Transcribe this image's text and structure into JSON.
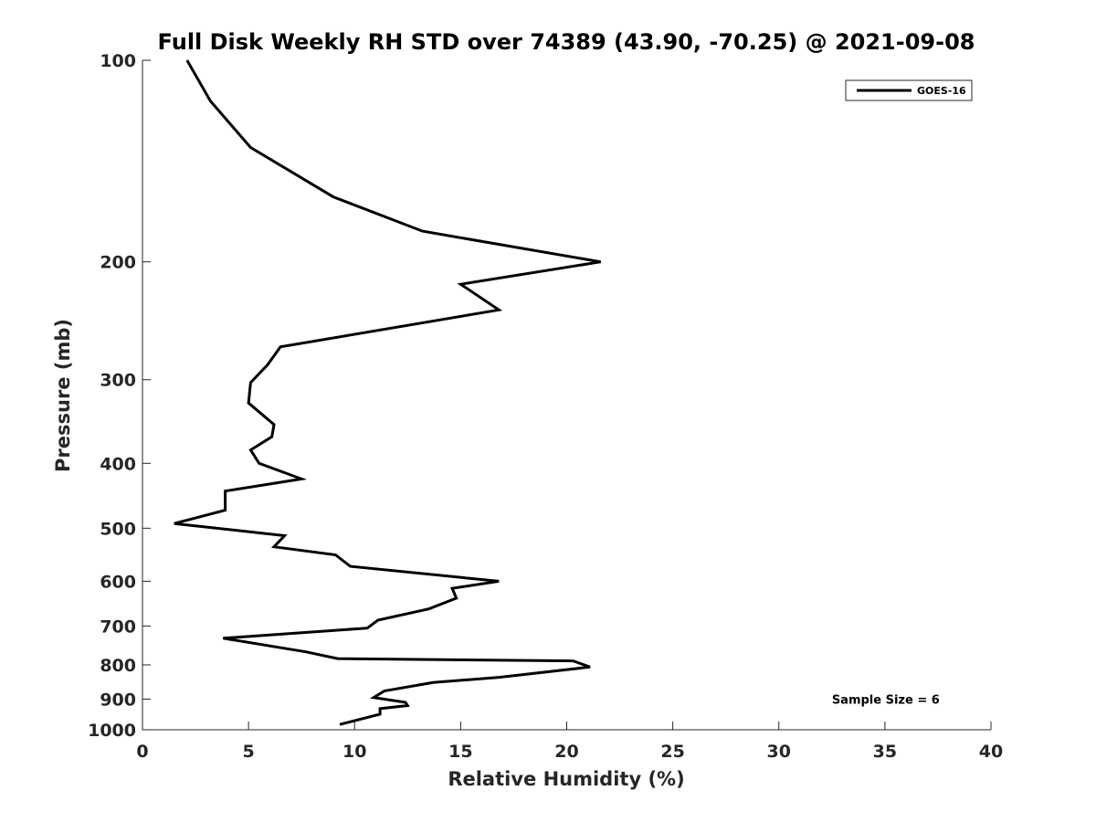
{
  "chart_data": {
    "type": "line",
    "title": "Full Disk Weekly RH STD over 74389 (43.90, -70.25) @ 2021-09-08",
    "xlabel": "Relative Humidity (%)",
    "ylabel": "Pressure (mb)",
    "xlim": [
      0,
      40
    ],
    "ylim": [
      100,
      1000
    ],
    "yscale": "log",
    "yreversed": true,
    "xticks": [
      "0",
      "5",
      "10",
      "15",
      "20",
      "25",
      "30",
      "35",
      "40"
    ],
    "yticks": [
      "100",
      "200",
      "300",
      "400",
      "500",
      "600",
      "700",
      "800",
      "900",
      "1000"
    ],
    "grid": false,
    "legend_position": "top-right",
    "series": [
      {
        "name": "GOES-16",
        "color": "#000000",
        "x": [
          2.1,
          3.2,
          5.1,
          9.0,
          13.2,
          21.6,
          15.0,
          16.8,
          6.5,
          5.9,
          5.1,
          5.0,
          6.2,
          6.1,
          5.1,
          5.5,
          7.5,
          3.9,
          3.9,
          1.5,
          6.7,
          6.2,
          9.1,
          9.8,
          16.8,
          14.6,
          14.8,
          13.5,
          11.1,
          10.6,
          3.8,
          7.7,
          9.2,
          20.3,
          21.1,
          16.8,
          13.7,
          11.4,
          10.9,
          12.4,
          12.5,
          11.2,
          11.2,
          9.3
        ],
        "y": [
          100,
          115,
          135,
          160,
          180,
          200,
          216,
          236,
          268,
          285,
          303,
          325,
          350,
          365,
          382,
          400,
          422,
          440,
          470,
          492,
          513,
          533,
          548,
          570,
          600,
          615,
          636,
          660,
          686,
          705,
          730,
          765,
          783,
          789,
          806,
          835,
          850,
          875,
          895,
          910,
          920,
          930,
          948,
          982
        ]
      }
    ],
    "annotations": [
      {
        "text": "Sample Size = 6",
        "x": 32.5,
        "y": 900
      }
    ]
  }
}
